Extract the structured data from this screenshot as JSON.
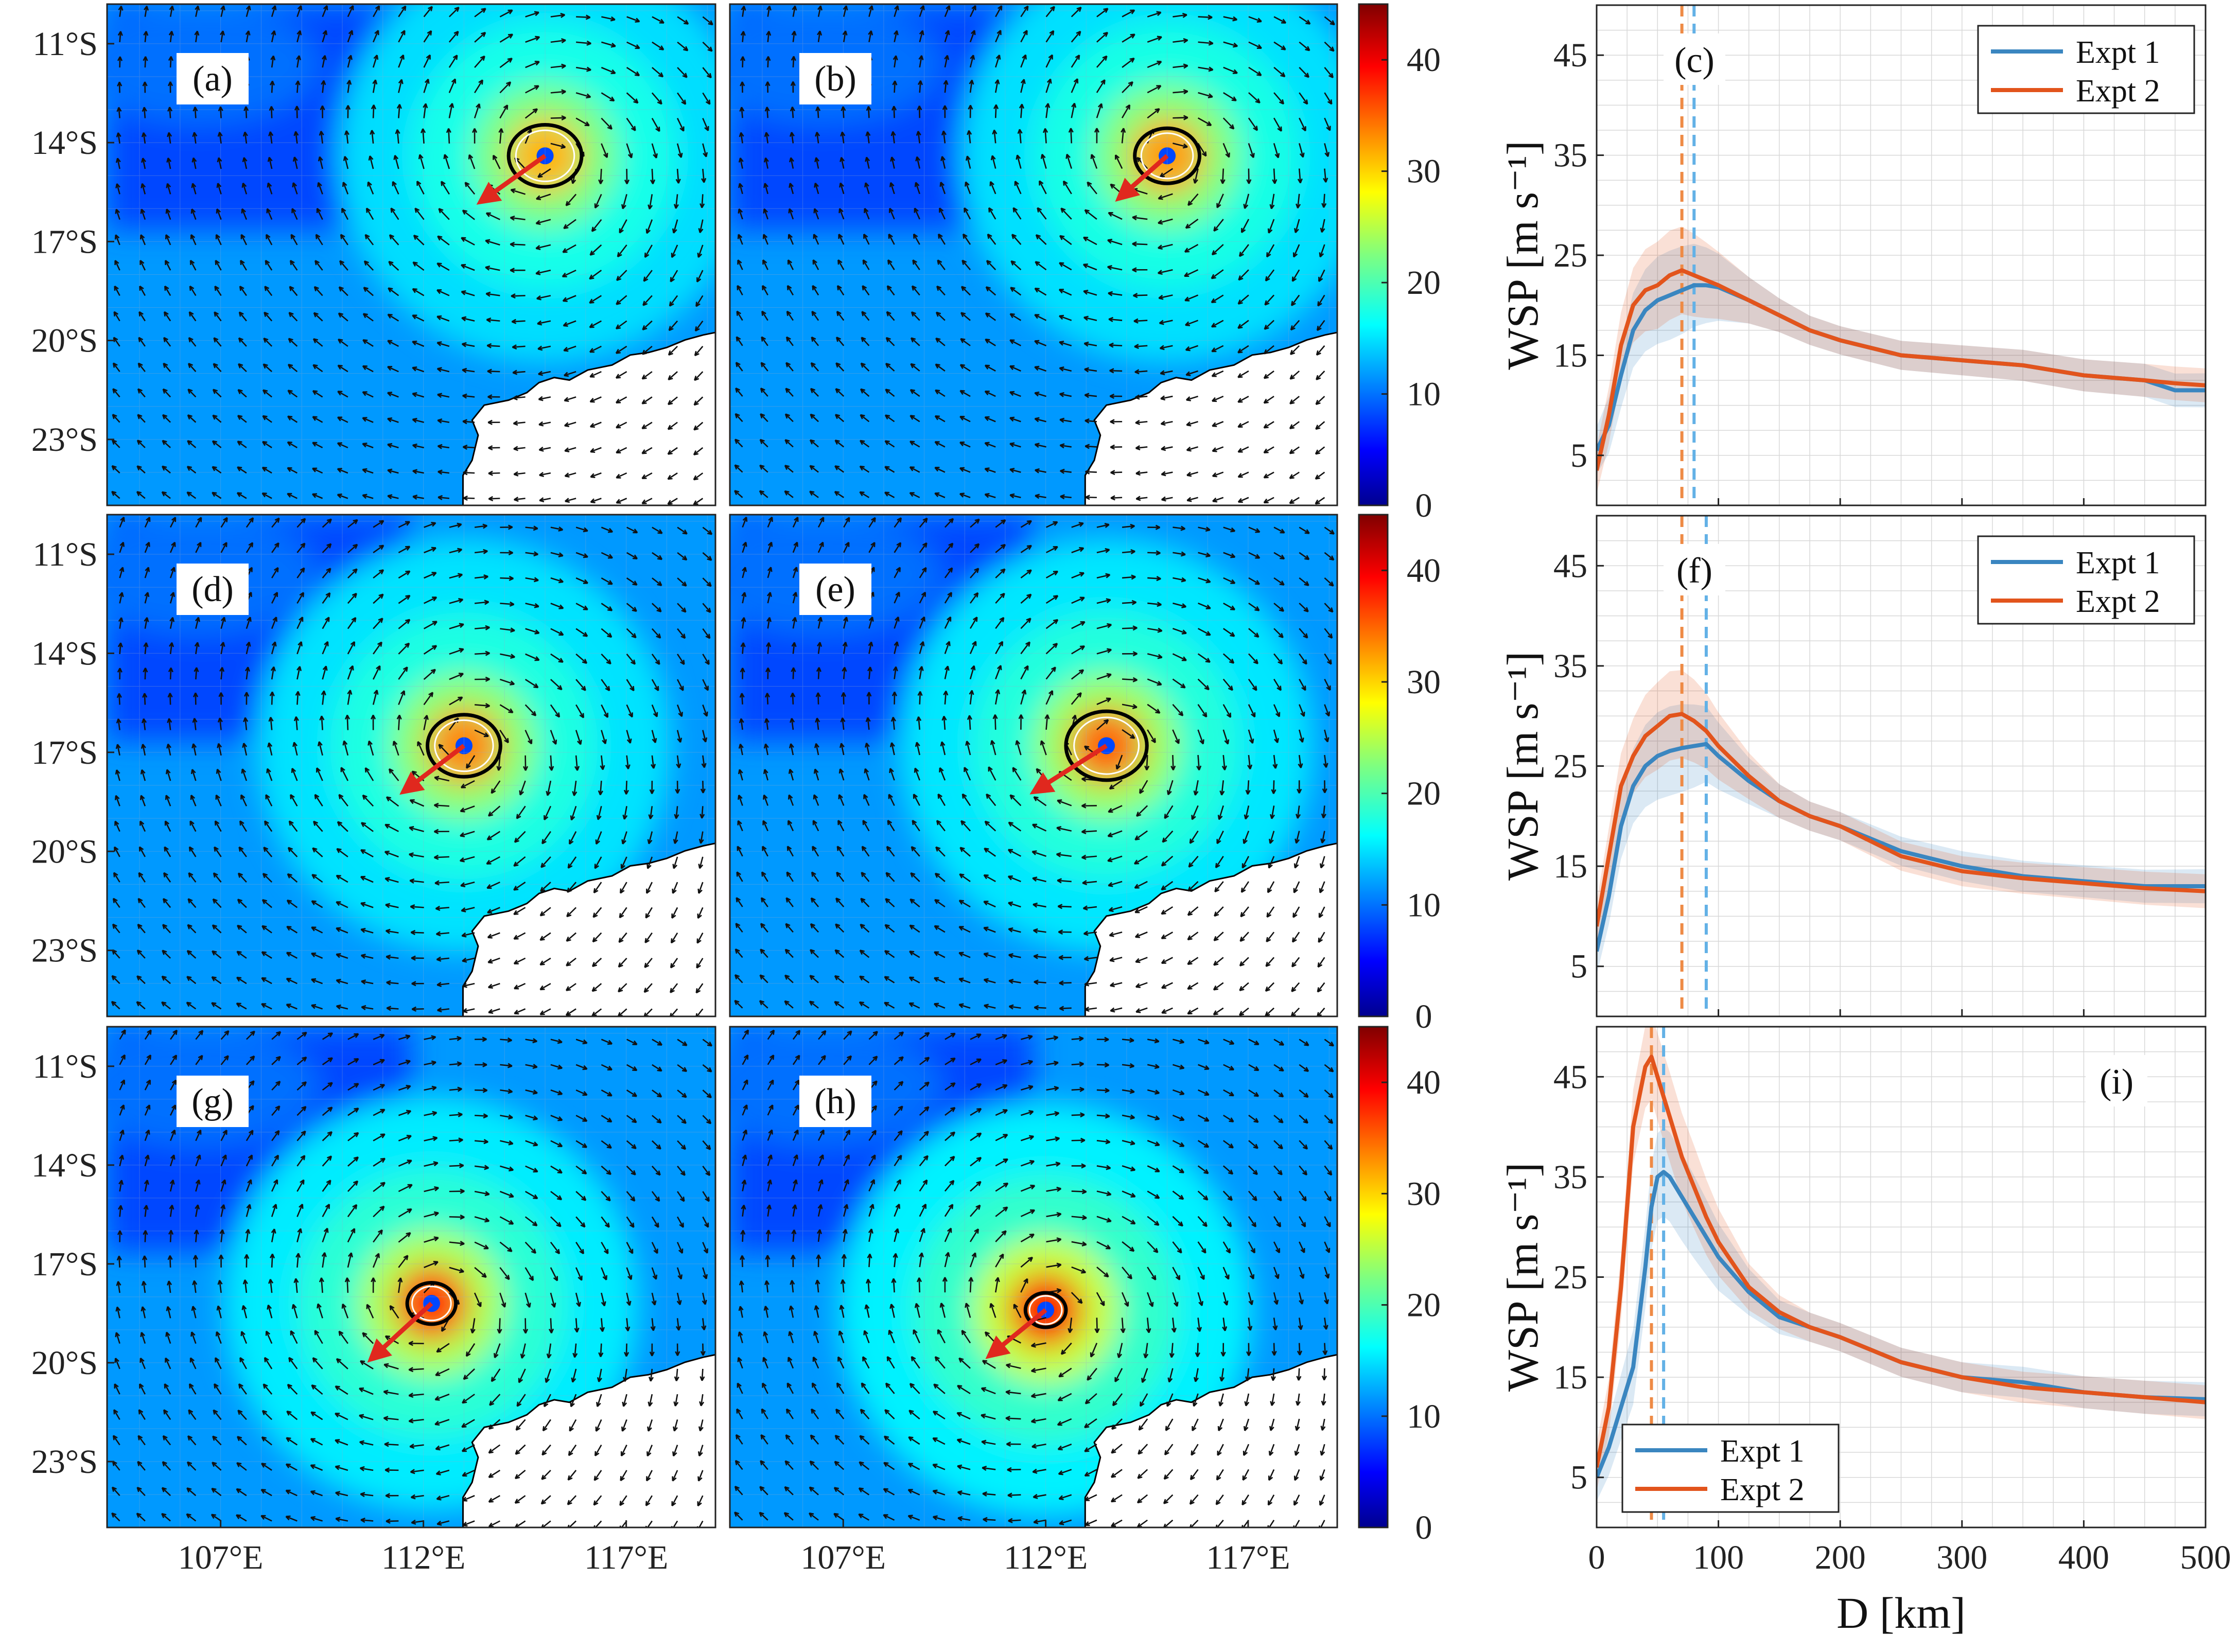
{
  "colors": {
    "expt1": "#3a86c0",
    "expt2": "#e2541c",
    "expt1_dashed": "#63b1e6",
    "expt2_dashed": "#ee8a45",
    "track_arrow": "#e0281e",
    "land": "#ffffff",
    "rmw_circle": "#000000"
  },
  "maps": {
    "lat_ticks": [
      "11°S",
      "14°S",
      "17°S",
      "20°S",
      "23°S"
    ],
    "lon_ticks": [
      "107°E",
      "112°E",
      "117°E"
    ],
    "panels": [
      {
        "id": "a",
        "label": "(a)",
        "center": [
          115.0,
          14.4
        ],
        "motion": [
          -1.6,
          1.4
        ],
        "rmw_deg": 0.9,
        "intensity": 0.55
      },
      {
        "id": "b",
        "label": "(b)",
        "center": [
          115.0,
          14.4
        ],
        "motion": [
          -1.2,
          1.3
        ],
        "rmw_deg": 0.8,
        "intensity": 0.6
      },
      {
        "id": "d",
        "label": "(d)",
        "center": [
          113.0,
          16.8
        ],
        "motion": [
          -1.5,
          1.4
        ],
        "rmw_deg": 0.9,
        "intensity": 0.65
      },
      {
        "id": "e",
        "label": "(e)",
        "center": [
          113.5,
          16.8
        ],
        "motion": [
          -1.8,
          1.4
        ],
        "rmw_deg": 1.0,
        "intensity": 0.72
      },
      {
        "id": "g",
        "label": "(g)",
        "center": [
          112.2,
          18.2
        ],
        "motion": [
          -1.5,
          1.7
        ],
        "rmw_deg": 0.6,
        "intensity": 0.82
      },
      {
        "id": "h",
        "label": "(h)",
        "center": [
          112.0,
          18.4
        ],
        "motion": [
          -1.4,
          1.4
        ],
        "rmw_deg": 0.5,
        "intensity": 0.95
      }
    ]
  },
  "colorbar": {
    "ticks": [
      "0",
      "10",
      "20",
      "30",
      "40"
    ],
    "vmin": 0,
    "vmax": 45
  },
  "chart_data": [
    {
      "type": "line",
      "label": "(c)",
      "xlabel": "D [km]",
      "ylabel": "WSP [m s⁻¹]",
      "xlim": [
        0,
        500
      ],
      "ylim": [
        0,
        50
      ],
      "xticks": [
        "0",
        "100",
        "200",
        "300",
        "400",
        "500"
      ],
      "yticks": [
        "5",
        "15",
        "25",
        "35",
        "45"
      ],
      "legend": {
        "position": "top-right",
        "entries": [
          "Expt 1",
          "Expt 2"
        ]
      },
      "x": [
        0,
        10,
        20,
        30,
        40,
        50,
        60,
        70,
        80,
        90,
        100,
        125,
        150,
        175,
        200,
        250,
        300,
        350,
        400,
        450,
        475,
        500
      ],
      "series": [
        {
          "name": "Expt 1",
          "values": [
            5.5,
            8,
            13,
            17.5,
            19.5,
            20.5,
            21,
            21.5,
            22,
            22,
            21.8,
            20.5,
            19,
            17.5,
            16.5,
            15,
            14.5,
            14,
            13,
            12.5,
            11.5,
            11.5
          ],
          "dashed_x": 80
        },
        {
          "name": "Expt 2",
          "values": [
            3.5,
            9,
            16,
            20,
            21.5,
            22,
            23,
            23.5,
            23,
            22.5,
            22,
            20.5,
            19,
            17.5,
            16.5,
            15,
            14.5,
            14,
            13,
            12.5,
            12.2,
            12
          ],
          "dashed_x": 70
        }
      ]
    },
    {
      "type": "line",
      "label": "(f)",
      "xlabel": "D [km]",
      "ylabel": "WSP [m s⁻¹]",
      "xlim": [
        0,
        500
      ],
      "ylim": [
        0,
        50
      ],
      "xticks": [
        "0",
        "100",
        "200",
        "300",
        "400",
        "500"
      ],
      "yticks": [
        "5",
        "15",
        "25",
        "35",
        "45"
      ],
      "legend": {
        "position": "top-right",
        "entries": [
          "Expt 1",
          "Expt 2"
        ]
      },
      "x": [
        0,
        10,
        20,
        30,
        40,
        50,
        60,
        70,
        80,
        90,
        100,
        125,
        150,
        175,
        200,
        250,
        300,
        350,
        400,
        450,
        500
      ],
      "series": [
        {
          "name": "Expt 1",
          "values": [
            6.5,
            12,
            19,
            23,
            25,
            26,
            26.5,
            26.8,
            27,
            27.2,
            26,
            23.5,
            21.5,
            20,
            19,
            16.5,
            15,
            14,
            13.5,
            13,
            13
          ],
          "dashed_x": 90
        },
        {
          "name": "Expt 2",
          "values": [
            9,
            16,
            23,
            26,
            28,
            29,
            30,
            30.2,
            29.5,
            28.5,
            27,
            24,
            21.5,
            20,
            19,
            16,
            14.5,
            13.8,
            13.3,
            12.8,
            12.5
          ],
          "dashed_x": 70
        }
      ]
    },
    {
      "type": "line",
      "label": "(i)",
      "xlabel": "D [km]",
      "ylabel": "WSP [m s⁻¹]",
      "xlim": [
        0,
        500
      ],
      "ylim": [
        0,
        50
      ],
      "xticks": [
        "0",
        "100",
        "200",
        "300",
        "400",
        "500"
      ],
      "yticks": [
        "5",
        "15",
        "25",
        "35",
        "45"
      ],
      "legend": {
        "position": "bottom-left",
        "entries": [
          "Expt 1",
          "Expt 2"
        ]
      },
      "x": [
        0,
        10,
        20,
        30,
        40,
        45,
        50,
        55,
        60,
        70,
        80,
        90,
        100,
        125,
        150,
        175,
        200,
        250,
        300,
        350,
        400,
        450,
        500
      ],
      "series": [
        {
          "name": "Expt 1",
          "values": [
            5,
            8,
            12,
            16,
            26,
            32,
            35,
            35.5,
            35,
            33,
            31,
            29,
            27,
            23.5,
            21,
            20,
            19,
            16.5,
            15,
            14.5,
            13.5,
            13,
            12.8
          ],
          "dashed_x": 55
        },
        {
          "name": "Expt 2",
          "values": [
            6,
            12,
            24,
            40,
            46,
            47,
            45,
            43,
            41,
            37,
            34,
            31,
            28.5,
            24,
            21.5,
            20,
            19,
            16.5,
            15,
            14,
            13.5,
            13,
            12.5
          ],
          "dashed_x": 45
        }
      ]
    }
  ]
}
